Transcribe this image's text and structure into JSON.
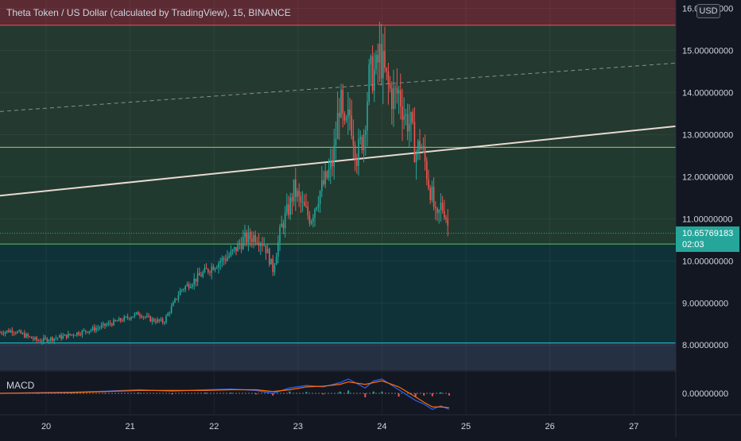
{
  "header": {
    "title": "Theta Token / US Dollar (calculated by TradingView), 15, BINANCE",
    "currency": "USD"
  },
  "last_price": {
    "value": "10.65769183",
    "countdown": "02:03",
    "price": 10.6577
  },
  "indicator": {
    "name": "MACD",
    "zero_label": "0.00000000"
  },
  "colors": {
    "background": "#131722",
    "up": "#26a69a",
    "down": "#ef5350",
    "text": "#d1d4dc",
    "zone_red": "#5b2a33",
    "zone_green": "#24392f",
    "zone_teal": "#0f3238",
    "zone_blue": "#263043",
    "macd_line": "#2962ff",
    "signal_line": "#ff6d00"
  },
  "chart_data": {
    "type": "candlestick",
    "title": "Theta Token / US Dollar (calculated by TradingView), 15, BINANCE",
    "timeframe": "15",
    "exchange": "BINANCE",
    "yaxis": {
      "unit": "USD",
      "range": [
        7.4,
        16.2
      ],
      "ticks": [
        "8.00000000",
        "9.00000000",
        "10.00000000",
        "11.00000000",
        "12.00000000",
        "13.00000000",
        "14.00000000",
        "15.00000000",
        "16.00000000"
      ],
      "tick_values": [
        8,
        9,
        10,
        11,
        12,
        13,
        14,
        15,
        16
      ]
    },
    "xaxis": {
      "ticks": [
        "20",
        "21",
        "22",
        "23",
        "24",
        "25",
        "26",
        "27"
      ],
      "tick_values": [
        20,
        21,
        22,
        23,
        24,
        25,
        26,
        27
      ],
      "range": [
        19.45,
        27.5
      ]
    },
    "zones": [
      {
        "from": 15.6,
        "to": 16.2,
        "color": "#5b2a33"
      },
      {
        "from": 12.7,
        "to": 15.6,
        "color": "#24392f"
      },
      {
        "from": 10.4,
        "to": 12.7,
        "color": "#213a2f"
      },
      {
        "from": 8.05,
        "to": 10.4,
        "color": "#0f3238"
      },
      {
        "from": 7.4,
        "to": 8.05,
        "color": "#263043"
      }
    ],
    "horizontal_levels": [
      {
        "value": 15.6,
        "color": "#ef5350"
      },
      {
        "value": 12.7,
        "color": "#9ccc65"
      },
      {
        "value": 10.4,
        "color": "#66bb6a"
      },
      {
        "value": 8.05,
        "color": "#26c6da"
      }
    ],
    "trendlines": [
      {
        "x1": 19.45,
        "y1": 11.55,
        "x2": 27.5,
        "y2": 13.2,
        "style": "solid",
        "color": "#e8d9d2"
      },
      {
        "x1": 19.45,
        "y1": 13.55,
        "x2": 27.5,
        "y2": 14.7,
        "style": "dashed",
        "color": "#8a8e99"
      }
    ],
    "price_path": {
      "x": [
        19.45,
        19.6,
        19.9,
        20.2,
        20.6,
        20.9,
        21.1,
        21.25,
        21.4,
        21.6,
        21.8,
        22.0,
        22.2,
        22.35,
        22.5,
        22.6,
        22.7,
        22.8,
        22.9,
        22.95,
        23.05,
        23.15,
        23.25,
        23.35,
        23.42,
        23.5,
        23.55,
        23.62,
        23.7,
        23.78,
        23.85,
        23.93,
        23.97,
        24.05,
        24.12,
        24.2,
        24.28,
        24.35,
        24.4,
        24.45,
        24.5,
        24.55,
        24.6,
        24.65,
        24.7,
        24.75,
        24.8
      ],
      "close": [
        8.3,
        8.35,
        8.1,
        8.2,
        8.4,
        8.6,
        8.75,
        8.6,
        8.55,
        9.3,
        9.6,
        9.9,
        10.15,
        10.5,
        10.6,
        10.4,
        9.8,
        10.8,
        11.3,
        11.7,
        11.3,
        11.0,
        11.6,
        12.0,
        12.4,
        13.9,
        13.0,
        13.5,
        12.5,
        13.0,
        14.4,
        14.5,
        14.9,
        14.3,
        13.9,
        14.0,
        13.4,
        13.2,
        12.5,
        12.8,
        12.5,
        11.9,
        11.5,
        10.9,
        11.3,
        11.2,
        10.6577
      ]
    },
    "macd": {
      "x": [
        19.45,
        19.9,
        20.3,
        20.7,
        21.1,
        21.5,
        21.9,
        22.2,
        22.5,
        22.7,
        22.9,
        23.1,
        23.3,
        23.5,
        23.6,
        23.8,
        23.9,
        24.0,
        24.2,
        24.4,
        24.5,
        24.6,
        24.7,
        24.8
      ],
      "macd": [
        0.0,
        0.02,
        0.03,
        0.06,
        0.1,
        0.06,
        0.1,
        0.12,
        0.08,
        0.0,
        0.15,
        0.22,
        0.18,
        0.3,
        0.4,
        0.15,
        0.35,
        0.4,
        0.1,
        -0.2,
        -0.3,
        -0.45,
        -0.35,
        -0.45
      ],
      "signal": [
        0.0,
        0.01,
        0.02,
        0.05,
        0.08,
        0.08,
        0.08,
        0.1,
        0.1,
        0.05,
        0.1,
        0.18,
        0.2,
        0.25,
        0.32,
        0.25,
        0.3,
        0.35,
        0.18,
        -0.1,
        -0.25,
        -0.38,
        -0.38,
        -0.4
      ],
      "zero": 0
    }
  }
}
